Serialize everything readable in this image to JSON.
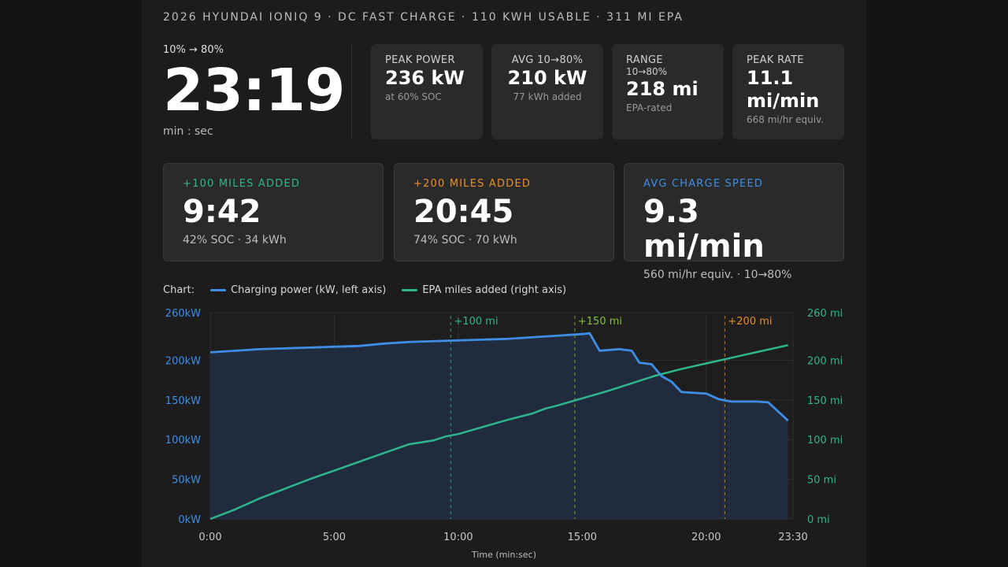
{
  "header": {
    "title": "2026 HYUNDAI IONIQ 9 · DC FAST CHARGE · 110 KWH USABLE · 311 MI EPA"
  },
  "hero": {
    "label": "10% → 80%",
    "time": "23:19",
    "unit": "min : sec"
  },
  "stats": [
    {
      "label": "PEAK POWER",
      "sublabel": "",
      "value": "236 kW",
      "note": "at 60% SOC"
    },
    {
      "label": "AVG 10→80%",
      "sublabel": "",
      "value": "210 kW",
      "note": "77 kWh added"
    },
    {
      "label": "RANGE",
      "sublabel": "10→80%",
      "value": "218 mi",
      "note": "EPA-rated"
    },
    {
      "label": "PEAK RATE",
      "sublabel": "",
      "value": "11.1 mi/min",
      "note": "668 mi/hr equiv."
    }
  ],
  "milestones": [
    {
      "label": "+100 MILES ADDED",
      "value": "9:42",
      "note": "42% SOC · 34 kWh",
      "color": "#2fb58f"
    },
    {
      "label": "+200 MILES ADDED",
      "value": "20:45",
      "note": "74% SOC · 70 kWh",
      "color": "#e88e2a"
    },
    {
      "label": "AVG CHARGE SPEED",
      "value": "9.3 mi/min",
      "note": "560 mi/hr equiv. · 10→80%",
      "color": "#3f8ee6"
    }
  ],
  "legend": {
    "prefix": "Chart:",
    "power": "Charging power (kW, left axis)",
    "miles": "EPA miles added (right axis)"
  },
  "chart_data": {
    "type": "line",
    "xlabel": "Time (min:sec)",
    "x_ticks": [
      "0:00",
      "5:00",
      "10:00",
      "15:00",
      "20:00",
      "23:30"
    ],
    "x_tick_values": [
      0,
      5,
      10,
      15,
      20,
      23.5
    ],
    "xlim": [
      0,
      23.5
    ],
    "y_left": {
      "ticks": [
        "0kW",
        "50kW",
        "100kW",
        "150kW",
        "200kW",
        "260kW"
      ],
      "tick_values": [
        0,
        50,
        100,
        150,
        200,
        260
      ],
      "ylim": [
        0,
        260
      ]
    },
    "y_right": {
      "ticks": [
        "0 mi",
        "50 mi",
        "100 mi",
        "150 mi",
        "200 mi",
        "260 mi"
      ],
      "tick_values": [
        0,
        50,
        100,
        150,
        200,
        260
      ],
      "ylim": [
        0,
        260
      ]
    },
    "grid": true,
    "series": [
      {
        "name": "Charging power (kW, left axis)",
        "axis": "left",
        "color": "#3f8ee6",
        "fill": true,
        "x": [
          0,
          1,
          2,
          3,
          4,
          5,
          6,
          7,
          8,
          9,
          10,
          11,
          12,
          13,
          14,
          15,
          15.3,
          15.7,
          16.5,
          17.0,
          17.3,
          17.8,
          18.2,
          18.6,
          19.0,
          20.0,
          20.5,
          21.0,
          22.0,
          22.5,
          23.3
        ],
        "y": [
          210,
          212,
          214,
          215,
          216,
          217,
          218,
          221,
          223,
          224,
          225,
          226,
          227,
          229,
          231,
          233,
          234,
          212,
          214,
          212,
          197,
          195,
          180,
          173,
          160,
          158,
          151,
          148,
          148,
          147,
          124
        ]
      },
      {
        "name": "EPA miles added (right axis)",
        "axis": "right",
        "color": "#2fb58f",
        "fill": false,
        "x": [
          0,
          1,
          2,
          3,
          4,
          5,
          6,
          7,
          8,
          9,
          9.5,
          10,
          11,
          12,
          13,
          13.5,
          14,
          15,
          16,
          17,
          18,
          19,
          20,
          21,
          22,
          23.3
        ],
        "y": [
          0,
          12,
          26,
          38,
          50,
          61,
          72,
          83,
          94,
          99,
          104,
          107,
          116,
          125,
          133,
          139,
          143,
          152,
          161,
          171,
          181,
          189,
          196,
          203,
          210,
          219
        ]
      }
    ],
    "annotations": [
      {
        "label": "+100 mi",
        "x": 9.7,
        "color": "#2fb58f"
      },
      {
        "label": "+150 mi",
        "x": 14.7,
        "color": "#86bd3a"
      },
      {
        "label": "+200 mi",
        "x": 20.75,
        "color": "#e88e2a"
      }
    ]
  }
}
